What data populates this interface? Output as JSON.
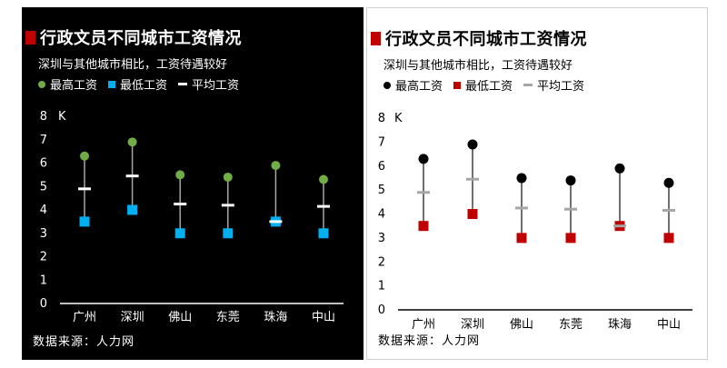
{
  "panels": [
    {
      "title": "行政文员不同城市工资情况",
      "subtitle": "深圳与其他城市相比，工资待遇较好",
      "legend": {
        "max": "最高工资",
        "min": "最低工资",
        "avg": "平均工资"
      },
      "source": "数据来源：人力网",
      "unit": "K",
      "colors": {
        "background": "#000000",
        "text": "#ffffff",
        "title_mark": "#c00000",
        "max": "#70ad47",
        "min": "#00b0f0",
        "avg": "#ffffff",
        "line": "#a6a6a6",
        "axis": "#ffffff"
      }
    },
    {
      "title": "行政文员不同城市工资情况",
      "subtitle": "深圳与其他城市相比，工资待遇较好",
      "legend": {
        "max": "最高工资",
        "min": "最低工资",
        "avg": "平均工资"
      },
      "source": "数据来源：人力网",
      "unit": "K",
      "colors": {
        "background": "#ffffff",
        "text": "#000000",
        "title_mark": "#c00000",
        "max": "#000000",
        "min": "#c00000",
        "avg": "#a6a6a6",
        "line": "#404040",
        "axis": "#000000"
      }
    }
  ],
  "chart_data": [
    {
      "type": "scatter",
      "title": "行政文员不同城市工资情况",
      "subtitle": "深圳与其他城市相比，工资待遇较好",
      "categories": [
        "广州",
        "深圳",
        "佛山",
        "东莞",
        "珠海",
        "中山"
      ],
      "series": [
        {
          "name": "最高工资",
          "values": [
            6.3,
            6.9,
            5.5,
            5.4,
            5.9,
            5.3
          ]
        },
        {
          "name": "最低工资",
          "values": [
            3.5,
            4.0,
            3.0,
            3.0,
            3.5,
            3.0
          ]
        },
        {
          "name": "平均工资",
          "values": [
            4.9,
            5.45,
            4.25,
            4.2,
            3.5,
            4.15
          ]
        }
      ],
      "ylim": [
        0,
        8
      ],
      "yticks": [
        0,
        1,
        2,
        3,
        4,
        5,
        6,
        7,
        8
      ],
      "ylabel": "K",
      "grid": false,
      "legend_position": "top-left"
    },
    {
      "type": "scatter",
      "title": "行政文员不同城市工资情况",
      "subtitle": "深圳与其他城市相比，工资待遇较好",
      "categories": [
        "广州",
        "深圳",
        "佛山",
        "东莞",
        "珠海",
        "中山"
      ],
      "series": [
        {
          "name": "最高工资",
          "values": [
            6.3,
            6.9,
            5.5,
            5.4,
            5.9,
            5.3
          ]
        },
        {
          "name": "最低工资",
          "values": [
            3.5,
            4.0,
            3.0,
            3.0,
            3.5,
            3.0
          ]
        },
        {
          "name": "平均工资",
          "values": [
            4.9,
            5.45,
            4.25,
            4.2,
            3.5,
            4.15
          ]
        }
      ],
      "ylim": [
        0,
        8
      ],
      "yticks": [
        0,
        1,
        2,
        3,
        4,
        5,
        6,
        7,
        8
      ],
      "ylabel": "K",
      "grid": false,
      "legend_position": "top-left"
    }
  ]
}
